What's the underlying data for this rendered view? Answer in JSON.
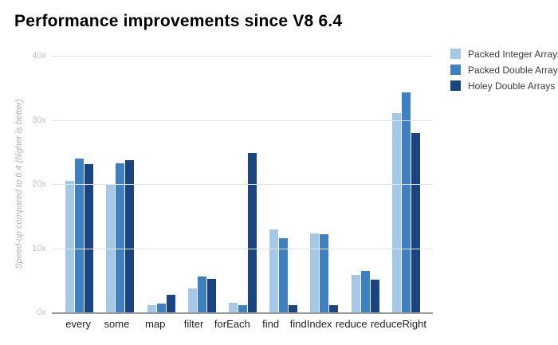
{
  "header": {
    "title": "Performance improvements since V8 6.4"
  },
  "colors": {
    "series": [
      "#a5c8e9",
      "#3e80c4",
      "#1b4484"
    ],
    "gridline": "#e3e3e3",
    "baseline": "#9b9b9b",
    "y_tick_label": "#c3c3c3",
    "axis_title": "#b3b3b3",
    "category_label": "#1f1f1f",
    "legend_label": "#3a3a3a",
    "title": "#000000",
    "background": "#ffffff"
  },
  "chart_data": {
    "type": "bar",
    "title": "Performance improvements since V8 6.4",
    "xlabel": "",
    "ylabel": "Speed-up compared to 6.4 (higher is better)",
    "categories": [
      "every",
      "some",
      "map",
      "filter",
      "forEach",
      "find",
      "findIndex",
      "reduce",
      "reduceRight"
    ],
    "series": [
      {
        "name": "Packed Integer Arrays",
        "color": "#a5c8e9",
        "values": [
          20.5,
          20.0,
          1.1,
          3.7,
          1.5,
          12.9,
          12.3,
          5.9,
          31.0
        ]
      },
      {
        "name": "Packed Double Arrays",
        "color": "#3e80c4",
        "values": [
          24.0,
          23.2,
          1.4,
          5.6,
          1.1,
          11.6,
          12.2,
          6.5,
          34.3
        ]
      },
      {
        "name": "Holey Double Arrays",
        "color": "#1b4484",
        "values": [
          23.1,
          23.7,
          2.7,
          5.2,
          24.8,
          1.1,
          1.1,
          5.1,
          28.0
        ]
      }
    ],
    "y_ticks": [
      "0x",
      "10x",
      "20x",
      "30x",
      "40x"
    ],
    "ylim": [
      0,
      40
    ],
    "grid": true,
    "legend_position": "right"
  }
}
